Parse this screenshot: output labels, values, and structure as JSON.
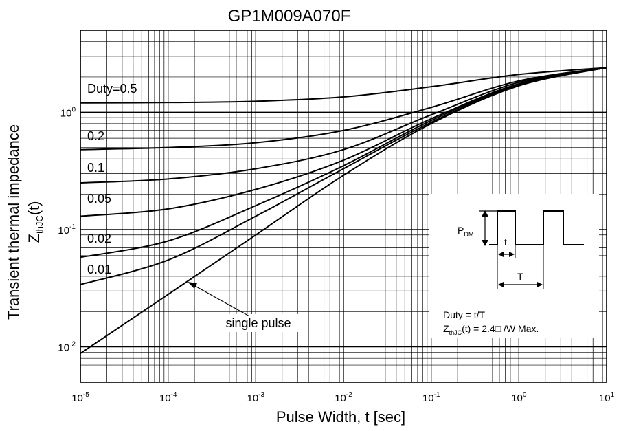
{
  "chart_data": {
    "type": "line",
    "title": "GP1M009A070F",
    "xlabel": "Pulse Width, t [sec]",
    "ylabel_line1": "Transient thermal impedance",
    "ylabel_line2_main": "Z",
    "ylabel_line2_sub": "thJC",
    "ylabel_line2_tail": "(t)",
    "x_scale": "log",
    "y_scale": "log",
    "xlim": [
      1e-05,
      10
    ],
    "ylim": [
      0.005,
      5
    ],
    "grid": true,
    "x_ticks": [
      {
        "base": "10",
        "exp": "-5",
        "value": 1e-05
      },
      {
        "base": "10",
        "exp": "-4",
        "value": 0.0001
      },
      {
        "base": "10",
        "exp": "-3",
        "value": 0.001
      },
      {
        "base": "10",
        "exp": "-2",
        "value": 0.01
      },
      {
        "base": "10",
        "exp": "-1",
        "value": 0.1
      },
      {
        "base": "10",
        "exp": "0",
        "value": 1
      },
      {
        "base": "10",
        "exp": "1",
        "value": 10
      }
    ],
    "y_ticks": [
      {
        "base": "10",
        "exp": "0",
        "value": 1
      },
      {
        "base": "10",
        "exp": "-1",
        "value": 0.1
      },
      {
        "base": "10",
        "exp": "-2",
        "value": 0.01
      }
    ],
    "series": [
      {
        "name": "Duty=0.5",
        "x": [
          1e-05,
          0.0001,
          0.001,
          0.01,
          0.1,
          1,
          10
        ],
        "values": [
          1.2,
          1.21,
          1.24,
          1.35,
          1.65,
          2.1,
          2.4
        ]
      },
      {
        "name": "0.2",
        "x": [
          1e-05,
          0.0001,
          0.001,
          0.01,
          0.1,
          1,
          10
        ],
        "values": [
          0.48,
          0.5,
          0.55,
          0.7,
          1.1,
          1.85,
          2.4
        ]
      },
      {
        "name": "0.1",
        "x": [
          1e-05,
          0.0001,
          0.001,
          0.01,
          0.1,
          1,
          10
        ],
        "values": [
          0.25,
          0.27,
          0.33,
          0.48,
          0.95,
          1.8,
          2.4
        ]
      },
      {
        "name": "0.05",
        "x": [
          1e-05,
          0.0001,
          0.001,
          0.01,
          0.1,
          1,
          10
        ],
        "values": [
          0.13,
          0.15,
          0.22,
          0.39,
          0.88,
          1.75,
          2.4
        ]
      },
      {
        "name": "0.02",
        "x": [
          1e-05,
          0.0001,
          0.001,
          0.01,
          0.1,
          1,
          10
        ],
        "values": [
          0.058,
          0.08,
          0.16,
          0.35,
          0.85,
          1.72,
          2.4
        ]
      },
      {
        "name": "0.01",
        "x": [
          1e-05,
          0.0001,
          0.001,
          0.01,
          0.1,
          1,
          10
        ],
        "values": [
          0.034,
          0.055,
          0.13,
          0.33,
          0.82,
          1.7,
          2.4
        ]
      },
      {
        "name": "single pulse",
        "x": [
          1e-05,
          0.0001,
          0.001,
          0.01,
          0.1,
          1,
          10
        ],
        "values": [
          0.0088,
          0.028,
          0.09,
          0.29,
          0.8,
          1.68,
          2.4
        ]
      }
    ],
    "annotations": {
      "duty_05": "Duty=0.5",
      "duty_02": "0.2",
      "duty_01": "0.1",
      "duty_005": "0.05",
      "duty_002": "0.02",
      "duty_001": "0.01",
      "single_pulse": "single pulse"
    },
    "inset": {
      "pdm_main": "P",
      "pdm_sub": "DM",
      "t_label": "t",
      "T_label": "T",
      "duty_formula": "Duty = t/T",
      "z_main": "Z",
      "z_sub": "thJC",
      "z_tail": "(t) =  2.4□ /W Max."
    }
  }
}
